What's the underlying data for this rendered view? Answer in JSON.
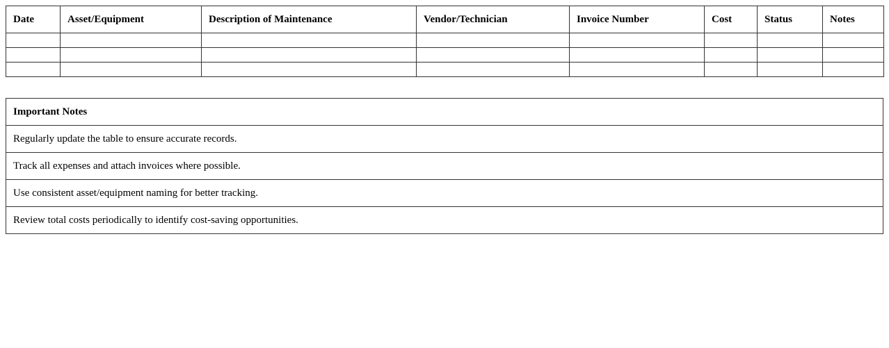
{
  "log_table": {
    "columns": [
      "Date",
      "Asset/Equipment",
      "Description of Maintenance",
      "Vendor/Technician",
      "Invoice Number",
      "Cost",
      "Status",
      "Notes"
    ],
    "rows": [
      [
        "",
        "",
        "",
        "",
        "",
        "",
        "",
        ""
      ],
      [
        "",
        "",
        "",
        "",
        "",
        "",
        "",
        ""
      ],
      [
        "",
        "",
        "",
        "",
        "",
        "",
        "",
        ""
      ]
    ]
  },
  "notes_table": {
    "title": "Important Notes",
    "items": [
      "Regularly update the table to ensure accurate records.",
      "Track all expenses and attach invoices where possible.",
      "Use consistent asset/equipment naming for better tracking.",
      "Review total costs periodically to identify cost-saving opportunities."
    ]
  }
}
